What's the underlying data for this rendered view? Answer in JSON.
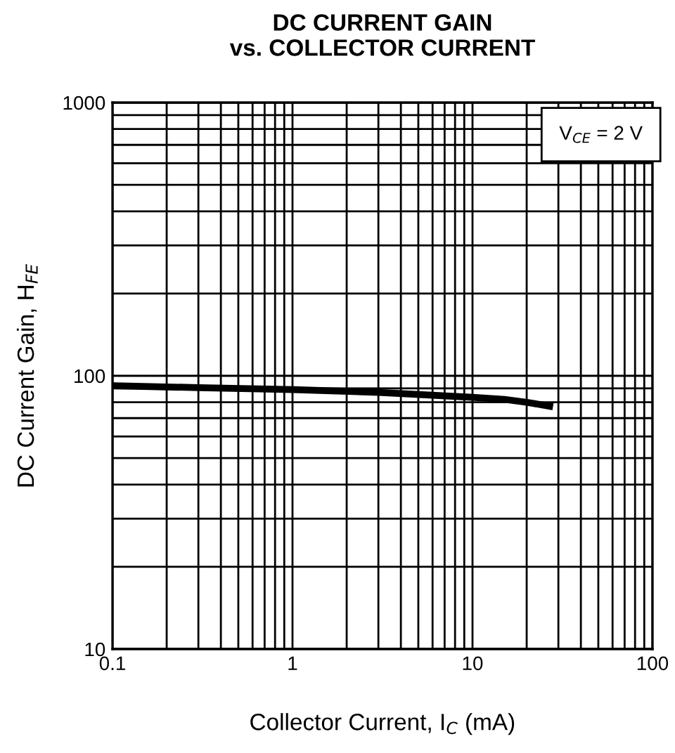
{
  "chart_data": {
    "type": "line",
    "title": "DC CURRENT GAIN\nvs. COLLECTOR CURRENT",
    "xlabel": "Collector Current, I$_{C}$ (mA)",
    "ylabel": "DC Current Gain, H$_{FE}$",
    "log": "xy",
    "grid": true,
    "xlim": [
      0.1,
      100
    ],
    "ylim": [
      10,
      1000
    ],
    "xticks": [
      0.1,
      1,
      10,
      100
    ],
    "yticks": [
      10,
      100,
      1000
    ],
    "annotations": [
      "V$_{CE}$ = 2 V"
    ],
    "series": [
      {
        "color": "#000000",
        "x": [
          0.1,
          0.3,
          1,
          3,
          10,
          15,
          20,
          28
        ],
        "values": [
          92,
          90.5,
          89,
          87,
          83.4,
          82,
          80,
          77
        ]
      }
    ]
  }
}
